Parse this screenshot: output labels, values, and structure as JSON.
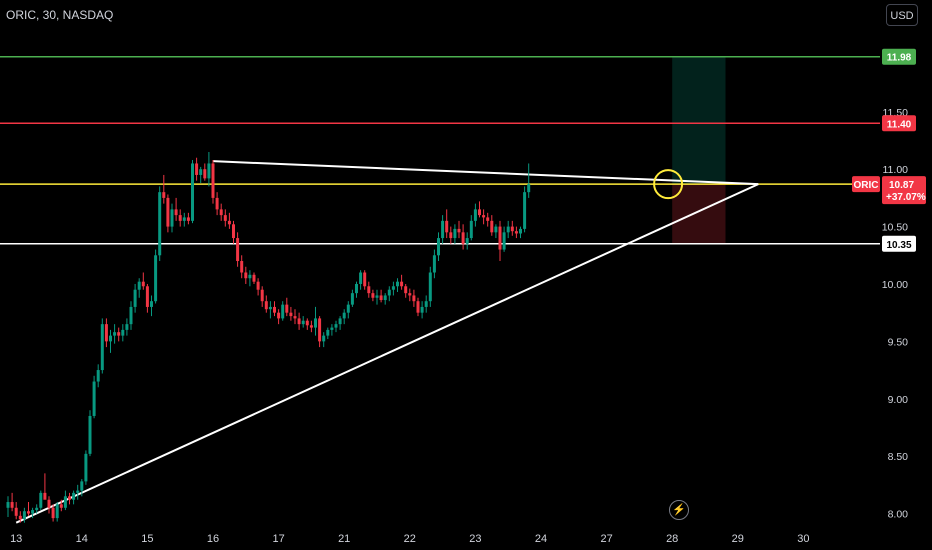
{
  "header": {
    "title": "ORIC, 30, NASDAQ",
    "currency": "USD"
  },
  "icons": {
    "flash": "lightning-icon"
  },
  "chart_data": {
    "type": "candlestick",
    "symbol": "ORIC",
    "ylim": [
      7.9,
      12.3
    ],
    "y_ticks": [
      {
        "value": 8.0,
        "label": "8.00"
      },
      {
        "value": 8.5,
        "label": "8.50"
      },
      {
        "value": 9.0,
        "label": "9.00"
      },
      {
        "value": 9.5,
        "label": "9.50"
      },
      {
        "value": 10.0,
        "label": "10.00"
      },
      {
        "value": 10.5,
        "label": "10.50"
      },
      {
        "value": 11.0,
        "label": "11.00"
      },
      {
        "value": 11.5,
        "label": "11.50"
      }
    ],
    "x_ticks": [
      {
        "index": 2,
        "label": "13"
      },
      {
        "index": 18,
        "label": "14"
      },
      {
        "index": 34,
        "label": "15"
      },
      {
        "index": 50,
        "label": "16"
      },
      {
        "index": 66,
        "label": "17"
      },
      {
        "index": 82,
        "label": "21"
      },
      {
        "index": 98,
        "label": "22"
      },
      {
        "index": 114,
        "label": "23"
      },
      {
        "index": 130,
        "label": "24"
      },
      {
        "index": 146,
        "label": "27"
      },
      {
        "index": 162,
        "label": "28"
      },
      {
        "index": 178,
        "label": "29"
      },
      {
        "index": 194,
        "label": "30"
      }
    ],
    "horizontal_lines": [
      {
        "value": 11.98,
        "label": "11.98",
        "color": "#4caf50"
      },
      {
        "value": 11.4,
        "label": "11.40",
        "color": "#f23645"
      },
      {
        "value": 10.87,
        "label": "",
        "color": "#ffeb3b"
      },
      {
        "value": 10.35,
        "label": "10.35",
        "color": "#ffffff"
      }
    ],
    "price_tag": {
      "symbol": "ORIC",
      "price": "10.87",
      "change": "+37.07%",
      "color": "#f23645"
    },
    "trend_lines": [
      {
        "x1": 50,
        "y1": 11.07,
        "x2": 183,
        "y2": 10.87,
        "color": "#ffffff"
      },
      {
        "x1": 2,
        "y1": 7.92,
        "x2": 183,
        "y2": 10.87,
        "color": "#ffffff"
      }
    ],
    "position": {
      "x_start": 162,
      "x_end": 175,
      "entry": 10.87,
      "target": 11.98,
      "stop": 10.35
    },
    "highlight": {
      "index": 161,
      "value": 10.87
    },
    "candles": [
      [
        8.05,
        8.15,
        7.97,
        8.1
      ],
      [
        8.1,
        8.18,
        8.02,
        8.05
      ],
      [
        8.05,
        8.1,
        7.95,
        7.98
      ],
      [
        7.98,
        8.02,
        7.92,
        7.95
      ],
      [
        7.95,
        8.05,
        7.92,
        8.02
      ],
      [
        8.02,
        8.1,
        7.98,
        8.0
      ],
      [
        8.0,
        8.05,
        7.96,
        8.03
      ],
      [
        8.03,
        8.08,
        8.0,
        8.05
      ],
      [
        8.05,
        8.2,
        8.03,
        8.18
      ],
      [
        8.18,
        8.35,
        8.15,
        8.12
      ],
      [
        8.12,
        8.15,
        8.0,
        8.05
      ],
      [
        8.05,
        8.08,
        7.93,
        7.96
      ],
      [
        7.96,
        8.1,
        7.93,
        8.08
      ],
      [
        8.08,
        8.12,
        8.02,
        8.05
      ],
      [
        8.05,
        8.2,
        8.03,
        8.15
      ],
      [
        8.15,
        8.18,
        8.08,
        8.12
      ],
      [
        8.12,
        8.2,
        8.08,
        8.18
      ],
      [
        8.18,
        8.25,
        8.12,
        8.2
      ],
      [
        8.2,
        8.3,
        8.15,
        8.28
      ],
      [
        8.28,
        8.55,
        8.25,
        8.52
      ],
      [
        8.52,
        8.9,
        8.5,
        8.85
      ],
      [
        8.85,
        9.2,
        8.83,
        9.15
      ],
      [
        9.15,
        9.3,
        9.1,
        9.25
      ],
      [
        9.25,
        9.7,
        9.22,
        9.65
      ],
      [
        9.65,
        9.7,
        9.45,
        9.5
      ],
      [
        9.5,
        9.6,
        9.4,
        9.55
      ],
      [
        9.55,
        9.65,
        9.48,
        9.58
      ],
      [
        9.58,
        9.62,
        9.5,
        9.55
      ],
      [
        9.55,
        9.65,
        9.5,
        9.6
      ],
      [
        9.6,
        9.7,
        9.55,
        9.65
      ],
      [
        9.65,
        9.85,
        9.6,
        9.8
      ],
      [
        9.8,
        10.0,
        9.75,
        9.95
      ],
      [
        9.95,
        10.05,
        9.88,
        10.02
      ],
      [
        10.02,
        10.1,
        9.95,
        9.98
      ],
      [
        9.98,
        10.0,
        9.75,
        9.8
      ],
      [
        9.8,
        9.9,
        9.72,
        9.85
      ],
      [
        9.85,
        10.3,
        9.83,
        10.25
      ],
      [
        10.25,
        10.85,
        10.2,
        10.8
      ],
      [
        10.8,
        10.95,
        10.7,
        10.75
      ],
      [
        10.75,
        10.78,
        10.45,
        10.5
      ],
      [
        10.5,
        10.7,
        10.45,
        10.65
      ],
      [
        10.65,
        10.75,
        10.55,
        10.6
      ],
      [
        10.6,
        10.65,
        10.5,
        10.55
      ],
      [
        10.55,
        10.62,
        10.5,
        10.58
      ],
      [
        10.58,
        10.62,
        10.52,
        10.55
      ],
      [
        10.55,
        11.08,
        10.53,
        11.05
      ],
      [
        11.05,
        11.1,
        10.9,
        10.95
      ],
      [
        10.95,
        11.02,
        10.88,
        11.0
      ],
      [
        11.0,
        11.05,
        10.9,
        10.92
      ],
      [
        10.92,
        11.15,
        10.85,
        11.05
      ],
      [
        11.05,
        11.08,
        10.7,
        10.75
      ],
      [
        10.75,
        10.8,
        10.6,
        10.65
      ],
      [
        10.65,
        10.7,
        10.55,
        10.6
      ],
      [
        10.6,
        10.65,
        10.5,
        10.55
      ],
      [
        10.55,
        10.62,
        10.48,
        10.52
      ],
      [
        10.52,
        10.55,
        10.35,
        10.4
      ],
      [
        10.4,
        10.45,
        10.15,
        10.2
      ],
      [
        10.2,
        10.25,
        10.05,
        10.1
      ],
      [
        10.1,
        10.15,
        10.0,
        10.05
      ],
      [
        10.05,
        10.12,
        9.98,
        10.08
      ],
      [
        10.08,
        10.1,
        10.0,
        10.02
      ],
      [
        10.02,
        10.05,
        9.9,
        9.95
      ],
      [
        9.95,
        9.98,
        9.8,
        9.85
      ],
      [
        9.85,
        9.9,
        9.75,
        9.78
      ],
      [
        9.78,
        9.85,
        9.7,
        9.8
      ],
      [
        9.8,
        9.85,
        9.72,
        9.75
      ],
      [
        9.75,
        9.78,
        9.65,
        9.7
      ],
      [
        9.7,
        9.85,
        9.68,
        9.82
      ],
      [
        9.82,
        9.88,
        9.72,
        9.75
      ],
      [
        9.75,
        9.8,
        9.68,
        9.72
      ],
      [
        9.72,
        9.78,
        9.65,
        9.7
      ],
      [
        9.7,
        9.75,
        9.6,
        9.65
      ],
      [
        9.65,
        9.72,
        9.62,
        9.68
      ],
      [
        9.68,
        9.7,
        9.6,
        9.64
      ],
      [
        9.64,
        9.68,
        9.58,
        9.62
      ],
      [
        9.62,
        9.8,
        9.55,
        9.7
      ],
      [
        9.7,
        9.72,
        9.45,
        9.5
      ],
      [
        9.5,
        9.58,
        9.45,
        9.55
      ],
      [
        9.55,
        9.62,
        9.52,
        9.6
      ],
      [
        9.6,
        9.65,
        9.55,
        9.62
      ],
      [
        9.62,
        9.68,
        9.58,
        9.65
      ],
      [
        9.65,
        9.72,
        9.6,
        9.7
      ],
      [
        9.7,
        9.78,
        9.65,
        9.75
      ],
      [
        9.75,
        9.85,
        9.7,
        9.82
      ],
      [
        9.82,
        9.95,
        9.8,
        9.92
      ],
      [
        9.92,
        10.02,
        9.88,
        10.0
      ],
      [
        10.0,
        10.12,
        9.95,
        10.1
      ],
      [
        10.1,
        10.12,
        9.95,
        9.98
      ],
      [
        9.98,
        10.02,
        9.88,
        9.92
      ],
      [
        9.92,
        9.95,
        9.85,
        9.88
      ],
      [
        9.88,
        9.95,
        9.82,
        9.9
      ],
      [
        9.9,
        9.95,
        9.84,
        9.86
      ],
      [
        9.86,
        9.92,
        9.82,
        9.9
      ],
      [
        9.9,
        9.98,
        9.85,
        9.95
      ],
      [
        9.95,
        10.02,
        9.9,
        9.98
      ],
      [
        9.98,
        10.05,
        9.93,
        10.02
      ],
      [
        10.02,
        10.08,
        9.95,
        9.98
      ],
      [
        9.98,
        10.0,
        9.88,
        9.92
      ],
      [
        9.92,
        9.96,
        9.85,
        9.9
      ],
      [
        9.9,
        9.95,
        9.8,
        9.85
      ],
      [
        9.85,
        9.88,
        9.72,
        9.75
      ],
      [
        9.75,
        9.85,
        9.7,
        9.8
      ],
      [
        9.8,
        9.9,
        9.75,
        9.85
      ],
      [
        9.85,
        10.15,
        9.8,
        10.1
      ],
      [
        10.1,
        10.3,
        10.05,
        10.25
      ],
      [
        10.25,
        10.45,
        10.2,
        10.4
      ],
      [
        10.4,
        10.6,
        10.35,
        10.55
      ],
      [
        10.55,
        10.65,
        10.4,
        10.45
      ],
      [
        10.45,
        10.5,
        10.35,
        10.4
      ],
      [
        10.4,
        10.52,
        10.35,
        10.48
      ],
      [
        10.48,
        10.55,
        10.4,
        10.45
      ],
      [
        10.45,
        10.52,
        10.3,
        10.35
      ],
      [
        10.35,
        10.45,
        10.3,
        10.4
      ],
      [
        10.4,
        10.6,
        10.38,
        10.55
      ],
      [
        10.55,
        10.7,
        10.5,
        10.65
      ],
      [
        10.65,
        10.72,
        10.58,
        10.6
      ],
      [
        10.6,
        10.65,
        10.52,
        10.58
      ],
      [
        10.58,
        10.62,
        10.5,
        10.55
      ],
      [
        10.55,
        10.6,
        10.42,
        10.45
      ],
      [
        10.45,
        10.52,
        10.4,
        10.5
      ],
      [
        10.5,
        10.55,
        10.2,
        10.3
      ],
      [
        10.3,
        10.5,
        10.28,
        10.45
      ],
      [
        10.45,
        10.55,
        10.4,
        10.5
      ],
      [
        10.5,
        10.55,
        10.42,
        10.46
      ],
      [
        10.46,
        10.5,
        10.4,
        10.44
      ],
      [
        10.44,
        10.5,
        10.4,
        10.48
      ],
      [
        10.48,
        10.85,
        10.45,
        10.8
      ],
      [
        10.8,
        11.05,
        10.75,
        10.87
      ]
    ],
    "candle_count_for_scale": 200
  }
}
